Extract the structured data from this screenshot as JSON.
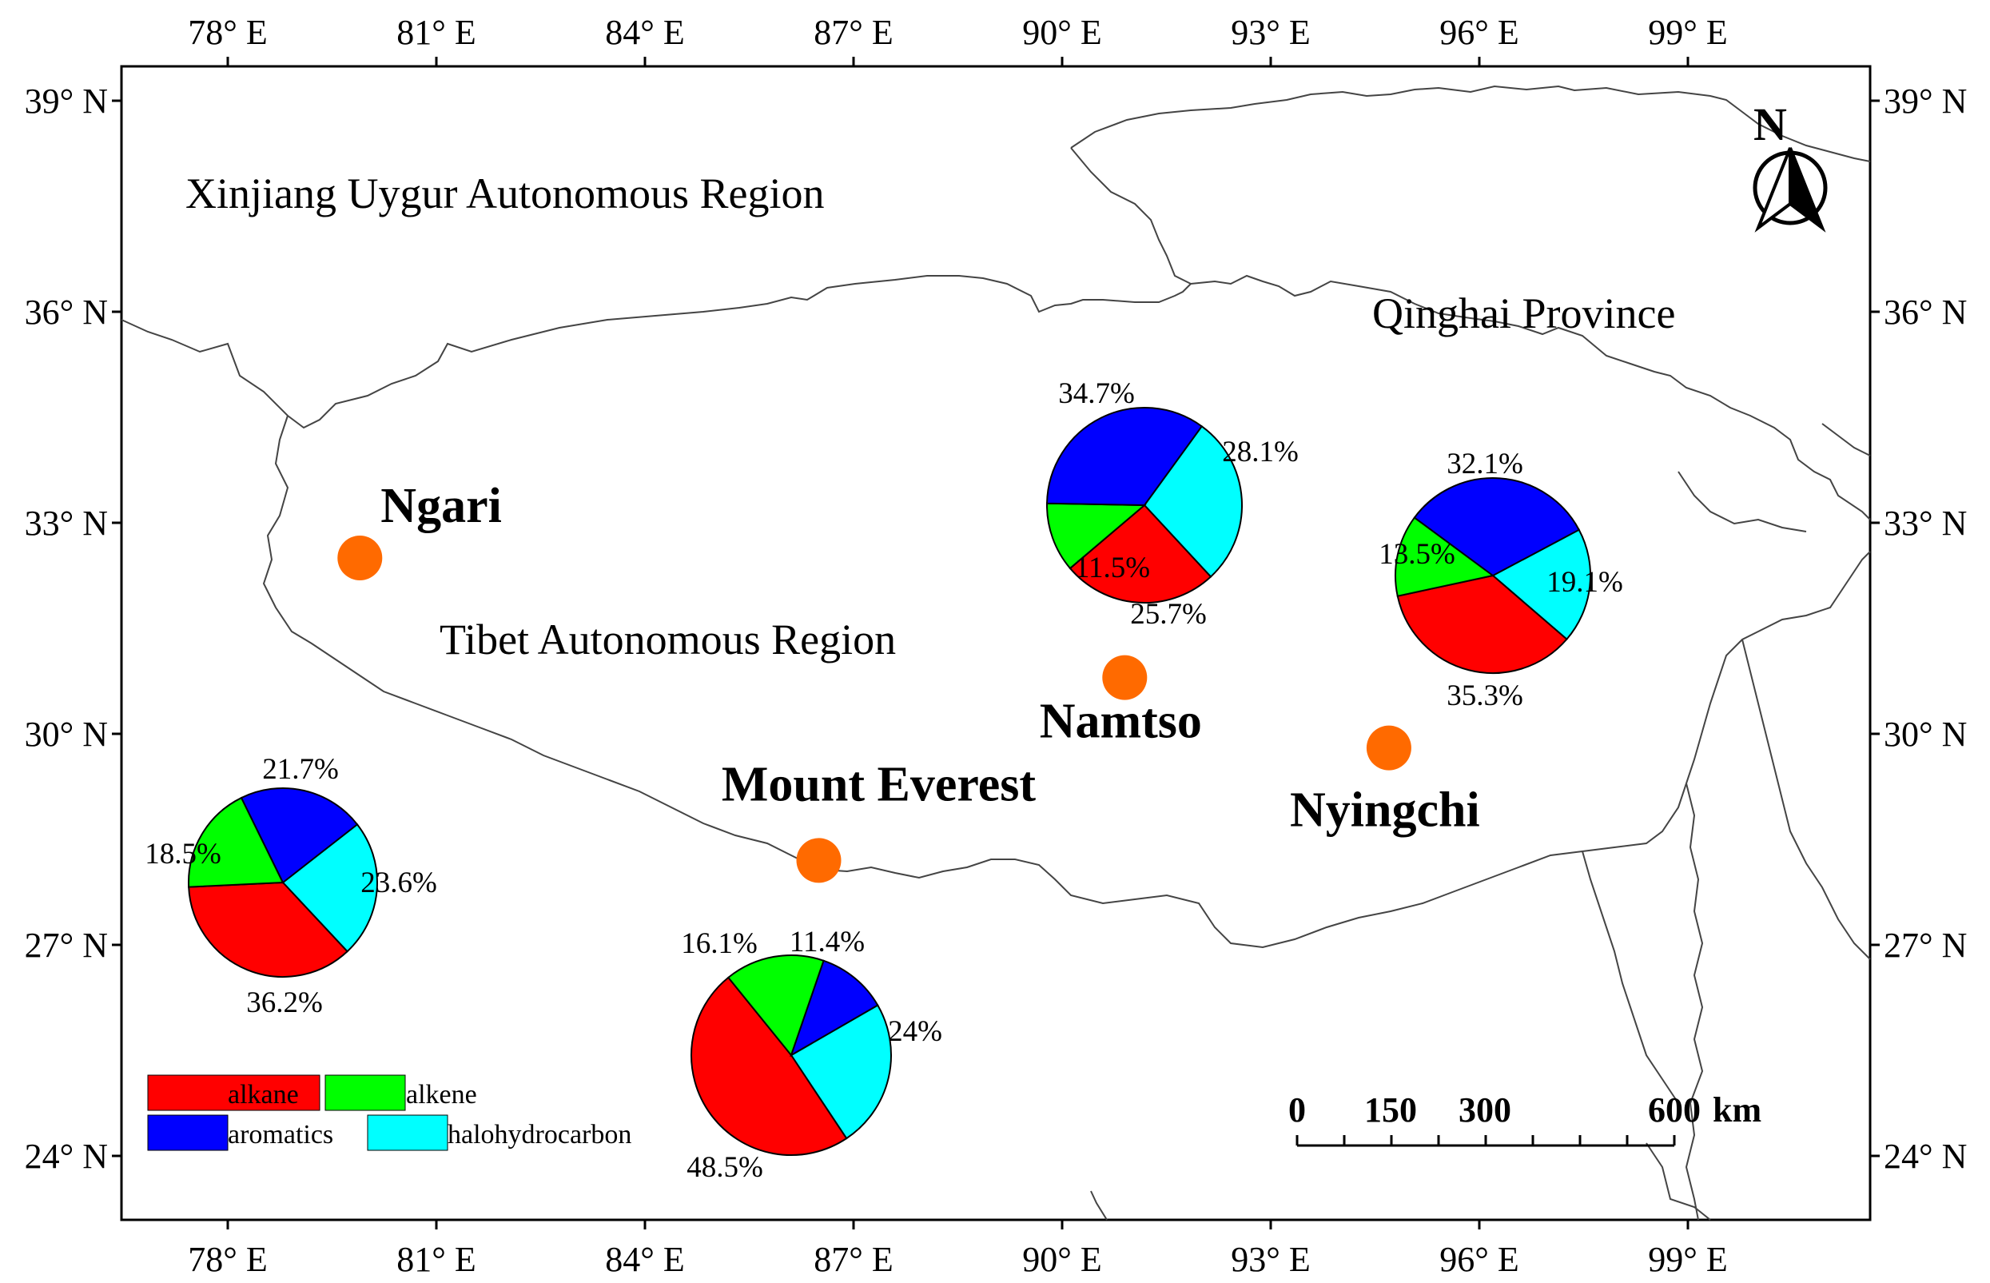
{
  "map": {
    "lon_ticks": [
      "78° E",
      "81° E",
      "84° E",
      "87° E",
      "90° E",
      "93° E",
      "96° E",
      "99° E"
    ],
    "lat_ticks": [
      "39° N",
      "36° N",
      "33° N",
      "30° N",
      "27° N",
      "24° N"
    ],
    "regions": {
      "xinjiang": "Xinjiang Uygur Autonomous Region",
      "qinghai": "Qinghai Province",
      "tibet": "Tibet Autonomous Region"
    },
    "north_arrow_label": "N",
    "scale_bar": {
      "labels": [
        "0",
        "150",
        "300",
        "600"
      ],
      "unit": "km"
    }
  },
  "sites": [
    {
      "name": "Ngari",
      "lon": 79.9,
      "lat": 32.5,
      "pie_index": null
    },
    {
      "name": "Namtso",
      "lon": 90.9,
      "lat": 30.8,
      "pie_index": 0
    },
    {
      "name": "Nyingchi",
      "lon": 94.7,
      "lat": 29.8,
      "pie_index": 1
    },
    {
      "name": "Mount Everest",
      "lon": 86.5,
      "lat": 28.2,
      "pie_index": 3
    }
  ],
  "legend": {
    "items": [
      {
        "label": "alkane",
        "color": "#ff0000"
      },
      {
        "label": "alkene",
        "color": "#00ff00"
      },
      {
        "label": "aromatics",
        "color": "#0000ff"
      },
      {
        "label": "halohydrocarbon",
        "color": "#00ffff"
      }
    ]
  },
  "pies": [
    {
      "values": {
        "alkane": 25.7,
        "alkene": 11.5,
        "aromatics": 34.7,
        "halohydrocarbon": 28.1
      },
      "labels": {
        "alkane": "25.7%",
        "alkene": "11.5%",
        "aromatics": "34.7%",
        "halohydrocarbon": "28.1%"
      }
    },
    {
      "values": {
        "alkane": 35.3,
        "alkene": 13.5,
        "aromatics": 32.1,
        "halohydrocarbon": 19.1
      },
      "labels": {
        "alkane": "35.3%",
        "alkene": "13.5%",
        "aromatics": "32.1%",
        "halohydrocarbon": "19.1%"
      }
    },
    {
      "values": {
        "alkane": 36.2,
        "alkene": 18.5,
        "aromatics": 21.7,
        "halohydrocarbon": 23.6
      },
      "labels": {
        "alkane": "36.2%",
        "alkene": "18.5%",
        "aromatics": "21.7%",
        "halohydrocarbon": "23.6%"
      }
    },
    {
      "values": {
        "alkane": 48.5,
        "alkene": 16.1,
        "aromatics": 11.4,
        "halohydrocarbon": 24.0
      },
      "labels": {
        "alkane": "48.5%",
        "alkene": "16.1%",
        "aromatics": "11.4%",
        "halohydrocarbon": "24%"
      }
    }
  ],
  "colors": {
    "site_marker": "#ff6a00",
    "border_line": "#444444"
  }
}
